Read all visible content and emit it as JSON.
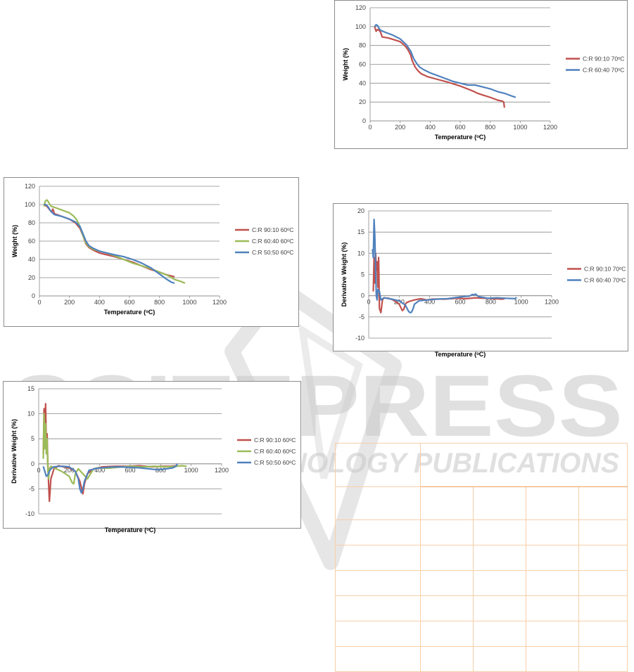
{
  "charts": [
    {
      "id": "tga70",
      "ylabel": "Weight (%)",
      "xlabel": "Temperature (ᵒC)",
      "ylim": [
        0,
        120
      ],
      "yticks": [
        0,
        20,
        40,
        60,
        80,
        100,
        120
      ],
      "xlim": [
        0,
        1200
      ],
      "xticks": [
        0,
        200,
        400,
        600,
        800,
        1000,
        1200
      ],
      "legend": "right",
      "series": [
        {
          "name": "C:R 90:10 70ᵒC",
          "color": "#c0504d",
          "x": [
            30,
            40,
            50,
            60,
            70,
            80,
            120,
            160,
            200,
            230,
            250,
            270,
            280,
            300,
            320,
            340,
            380,
            450,
            520,
            600,
            680,
            720,
            760,
            800,
            850,
            880,
            890,
            895
          ],
          "y": [
            100,
            95,
            97,
            96,
            94,
            89,
            88,
            86,
            84,
            80,
            76,
            70,
            64,
            57,
            53,
            50,
            47,
            44,
            41,
            37,
            32,
            29,
            27,
            25,
            22,
            21,
            20,
            14
          ]
        },
        {
          "name": "C:R 60:40 70ᵒC",
          "color": "#4f81bd",
          "x": [
            30,
            40,
            50,
            60,
            70,
            100,
            150,
            200,
            240,
            270,
            290,
            310,
            330,
            360,
            400,
            450,
            500,
            550,
            600,
            650,
            700,
            750,
            800,
            850,
            900,
            950,
            970
          ],
          "y": [
            100,
            102,
            101,
            98,
            96,
            94,
            91,
            87,
            81,
            74,
            66,
            61,
            57,
            54,
            51,
            48,
            45,
            42,
            40,
            38,
            38,
            36,
            34,
            31,
            29,
            26,
            25
          ]
        }
      ]
    },
    {
      "id": "tga60",
      "ylabel": "Weight (%)",
      "xlabel": "Temperature (ᵒC)",
      "ylim": [
        0,
        120
      ],
      "yticks": [
        0,
        20,
        40,
        60,
        80,
        100,
        120
      ],
      "xlim": [
        0,
        1200
      ],
      "xticks": [
        0,
        200,
        400,
        600,
        800,
        1000,
        1200
      ],
      "legend": "right",
      "series": [
        {
          "name": "C:R 90:10 60ᵒC",
          "color": "#c0504d",
          "x": [
            30,
            40,
            50,
            60,
            70,
            80,
            90,
            100,
            150,
            200,
            240,
            270,
            290,
            310,
            330,
            360,
            400,
            450,
            500,
            560,
            620,
            680,
            740,
            800,
            850,
            900
          ],
          "y": [
            100,
            99,
            98,
            96,
            94,
            92,
            95,
            90,
            87,
            84,
            80,
            74,
            66,
            57,
            53,
            50,
            47,
            45,
            43,
            40,
            37,
            33,
            29,
            26,
            23,
            21
          ]
        },
        {
          "name": "C:R 60:40 60ᵒC",
          "color": "#9bbb59",
          "x": [
            30,
            40,
            50,
            60,
            70,
            80,
            100,
            150,
            200,
            230,
            250,
            270,
            290,
            310,
            330,
            360,
            400,
            450,
            500,
            560,
            620,
            680,
            740,
            800,
            860,
            900,
            940,
            970
          ],
          "y": [
            98,
            104,
            105,
            103,
            100,
            98,
            97,
            94,
            91,
            87,
            83,
            76,
            66,
            58,
            54,
            51,
            49,
            47,
            44,
            40,
            36,
            33,
            30,
            26,
            22,
            18,
            16,
            14
          ]
        },
        {
          "name": "C:R 50:50 60ᵒC",
          "color": "#4f81bd",
          "x": [
            30,
            40,
            50,
            60,
            70,
            80,
            100,
            150,
            200,
            240,
            270,
            290,
            310,
            330,
            360,
            400,
            450,
            500,
            560,
            620,
            680,
            740,
            800,
            850,
            880,
            900
          ],
          "y": [
            100,
            100,
            99,
            97,
            94,
            92,
            89,
            87,
            84,
            81,
            76,
            68,
            60,
            55,
            52,
            49,
            47,
            45,
            43,
            40,
            36,
            31,
            24,
            18,
            15,
            14
          ]
        }
      ]
    },
    {
      "id": "dtg70",
      "ylabel": "Derivative Weight (%)",
      "xlabel": "Temperature (ᵒC)",
      "ylim": [
        -10,
        20
      ],
      "yticks": [
        -10,
        -5,
        0,
        5,
        10,
        15,
        20
      ],
      "xlim": [
        0,
        1200
      ],
      "xticks": [
        0,
        200,
        400,
        600,
        800,
        1000,
        1200
      ],
      "legend": "right",
      "series": [
        {
          "name": "C:R 90:10 70ᵒC",
          "color": "#c0504d",
          "x": [
            30,
            35,
            40,
            45,
            50,
            55,
            60,
            65,
            70,
            80,
            90,
            100,
            130,
            160,
            200,
            220,
            230,
            240,
            250,
            270,
            300,
            340,
            380,
            420,
            500,
            580,
            640,
            700,
            760,
            820,
            880,
            895
          ],
          "y": [
            1,
            9,
            3,
            10,
            6,
            8,
            2,
            9,
            -3,
            -4,
            -1,
            -0.5,
            -0.6,
            -1,
            -2,
            -3.5,
            -3.2,
            -2,
            -1.6,
            -1.3,
            -1,
            -0.7,
            -1,
            -0.8,
            -0.8,
            -0.6,
            -0.7,
            -0.5,
            -0.6,
            -0.7,
            -0.8,
            -0.6
          ]
        },
        {
          "name": "C:R 60:40 70ᵒC",
          "color": "#4f81bd",
          "x": [
            25,
            30,
            35,
            40,
            45,
            50,
            55,
            60,
            70,
            80,
            100,
            150,
            200,
            240,
            260,
            270,
            280,
            290,
            300,
            330,
            380,
            450,
            520,
            580,
            620,
            660,
            680,
            690,
            700,
            720,
            780,
            840,
            900,
            960,
            970
          ],
          "y": [
            11,
            9,
            18,
            14,
            6,
            0,
            -1,
            1.5,
            1,
            -1,
            -0.5,
            -0.8,
            -1.2,
            -2.2,
            -3.6,
            -4,
            -3.9,
            -3.2,
            -2,
            -1.2,
            -1,
            -0.8,
            -0.7,
            -0.4,
            -0.2,
            -0.1,
            0.3,
            0.2,
            0.4,
            -0.2,
            -0.6,
            -0.5,
            -0.6,
            -0.7,
            -0.4
          ]
        }
      ]
    },
    {
      "id": "dtg60",
      "ylabel": "Derivative Weight (%)",
      "xlabel": "Temperature (ᵒC)",
      "ylim": [
        -10,
        15
      ],
      "yticks": [
        -10,
        -5,
        0,
        5,
        10,
        15
      ],
      "xlim": [
        0,
        1200
      ],
      "xticks": [
        0,
        200,
        400,
        600,
        800,
        1000,
        1200
      ],
      "legend": "right",
      "series": [
        {
          "name": "C:R 90:10 60ᵒC",
          "color": "#c0504d",
          "x": [
            30,
            35,
            40,
            45,
            50,
            55,
            60,
            65,
            70,
            80,
            100,
            130,
            160,
            200,
            240,
            270,
            290,
            300,
            320,
            360,
            420,
            500,
            580,
            660,
            740,
            800,
            860,
            900
          ],
          "y": [
            2,
            11,
            5,
            12,
            4,
            6,
            0,
            -4,
            -7.5,
            -3,
            -1,
            -0.4,
            -0.6,
            -0.8,
            -1.5,
            -3.5,
            -6,
            -4,
            -2,
            -1,
            -0.6,
            -0.5,
            -0.5,
            -0.4,
            -0.6,
            -0.5,
            -0.5,
            -0.4
          ]
        },
        {
          "name": "C:R 60:40 60ᵒC",
          "color": "#9bbb59",
          "x": [
            30,
            35,
            40,
            45,
            50,
            55,
            60,
            65,
            70,
            80,
            100,
            150,
            200,
            220,
            230,
            240,
            260,
            290,
            320,
            360,
            400,
            450,
            520,
            600,
            680,
            760,
            840,
            900,
            940,
            970
          ],
          "y": [
            1,
            10,
            3,
            8,
            2,
            5,
            -1,
            -3,
            -1,
            -0.5,
            -0.8,
            -1.5,
            -2.5,
            -3.8,
            -4,
            -2,
            -1,
            -2,
            -3,
            -1,
            -0.8,
            -0.9,
            -0.7,
            -0.5,
            -0.6,
            -0.5,
            -0.6,
            -0.5,
            -0.4,
            -0.5
          ]
        },
        {
          "name": "C:R 50:50 60ᵒC",
          "color": "#4f81bd",
          "x": [
            30,
            40,
            50,
            60,
            70,
            80,
            100,
            130,
            160,
            200,
            240,
            260,
            270,
            280,
            290,
            300,
            330,
            380,
            450,
            520,
            600,
            660,
            720,
            780,
            840,
            880,
            900,
            910
          ],
          "y": [
            -0.5,
            -1.5,
            -2.5,
            -2.2,
            -1.5,
            -1,
            -0.6,
            -0.5,
            -0.5,
            -0.6,
            -1.5,
            -3,
            -5,
            -5.8,
            -5,
            -3.5,
            -1.3,
            -0.9,
            -0.7,
            -0.6,
            -0.7,
            -0.8,
            -1,
            -1.2,
            -1,
            -0.8,
            -0.5,
            0
          ]
        }
      ]
    }
  ],
  "watermark": {
    "main": "SCITEPRESS",
    "sub": "SCIENCE AND TECHNOLOGY PUBLICATIONS"
  }
}
